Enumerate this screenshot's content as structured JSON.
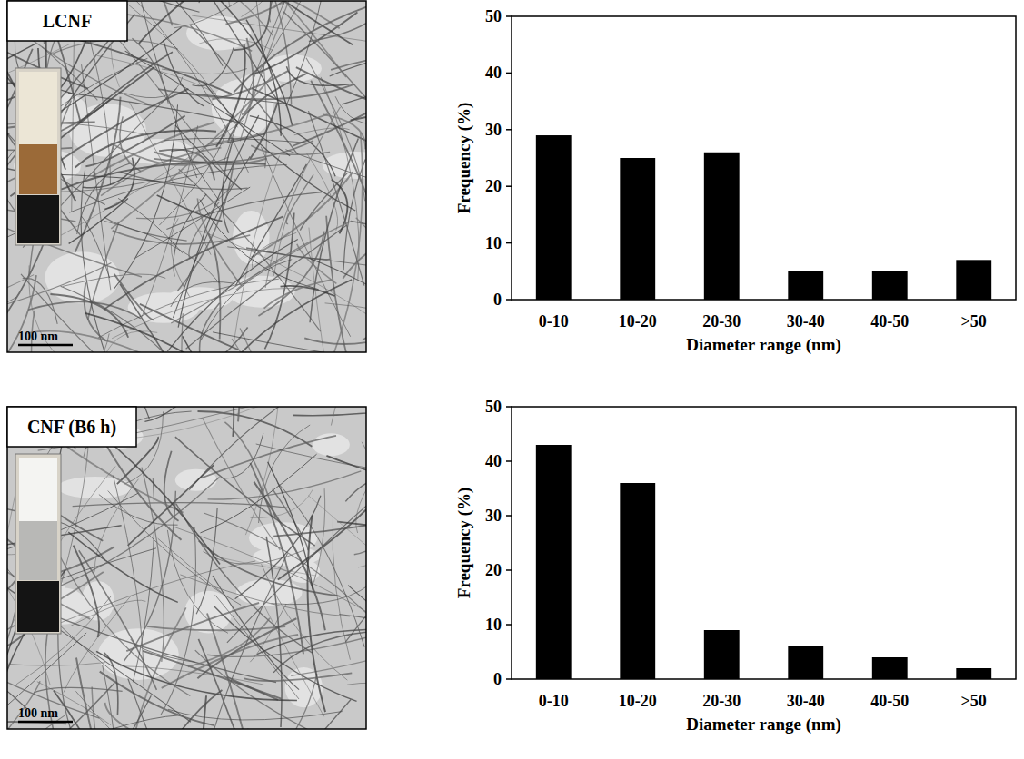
{
  "chart_data": [
    {
      "type": "bar",
      "categories": [
        "0-10",
        "10-20",
        "20-30",
        "30-40",
        "40-50",
        ">50"
      ],
      "values": [
        29,
        25,
        26,
        5,
        5,
        7
      ],
      "color": "#000000",
      "x_label": "Diameter range (nm)",
      "y_label": "Frequency (%)",
      "ylim": [
        0,
        50
      ],
      "yticks": [
        0,
        10,
        20,
        30,
        40,
        50
      ],
      "grid": false
    },
    {
      "type": "bar",
      "categories": [
        "0-10",
        "10-20",
        "20-30",
        "30-40",
        "40-50",
        ">50"
      ],
      "values": [
        43,
        36,
        9,
        6,
        4,
        2
      ],
      "color": "#000000",
      "x_label": "Diameter range (nm)",
      "y_label": "Frequency (%)",
      "ylim": [
        0,
        50
      ],
      "yticks": [
        0,
        10,
        20,
        30,
        40,
        50
      ],
      "grid": false
    }
  ],
  "images": [
    {
      "label": "LCNF",
      "scale_bar": "100 nm"
    },
    {
      "label": "CNF (B6 h)",
      "scale_bar": "100 nm"
    }
  ]
}
